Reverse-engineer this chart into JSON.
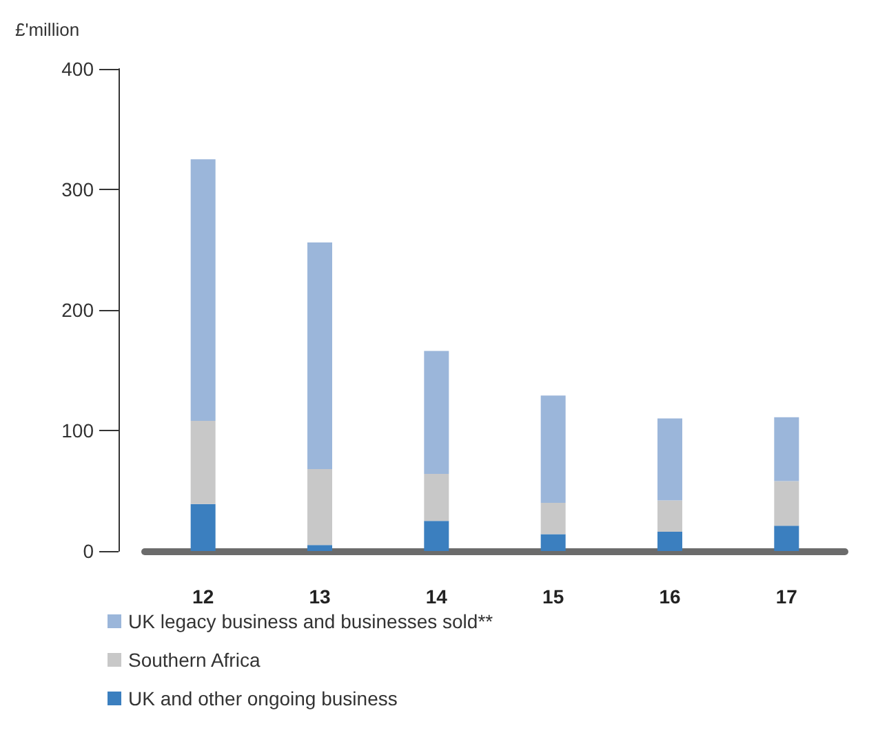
{
  "chart_data": {
    "type": "bar",
    "ylabel": "£'million",
    "categories": [
      "12",
      "13",
      "14",
      "15",
      "16",
      "17"
    ],
    "stacked": true,
    "ylim": [
      0,
      400
    ],
    "yticks": [
      0,
      100,
      200,
      300,
      400
    ],
    "grid": false,
    "legend": "bottom",
    "series": [
      {
        "name": "UK and other ongoing business",
        "color": "#3b7fbf",
        "values": [
          39,
          5,
          25,
          14,
          16,
          21
        ]
      },
      {
        "name": "Southern Africa",
        "color": "#c8c8c8",
        "values": [
          69,
          63,
          39,
          26,
          26,
          37
        ]
      },
      {
        "name": "UK legacy business and businesses sold**",
        "color": "#9bb6da",
        "values": [
          217,
          188,
          102,
          89,
          68,
          53
        ]
      }
    ]
  }
}
